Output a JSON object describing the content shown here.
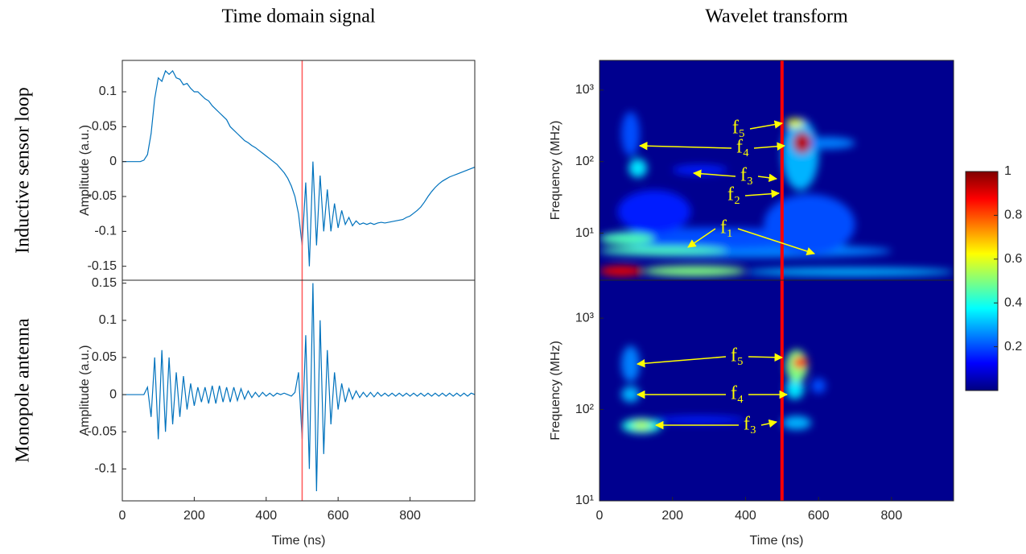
{
  "chart_data": [
    {
      "type": "line",
      "title": "Time domain signal",
      "row_label": "Inductive sensor loop",
      "ylabel": "Amplitude (a.u.)",
      "color": "#0072bd",
      "xlim": [
        0,
        980
      ],
      "ylim": [
        -0.17,
        0.145
      ],
      "yticks": [
        -0.15,
        -0.1,
        -0.05,
        0,
        0.05,
        0.1
      ],
      "vline": 500,
      "vline_color": "#ff5a5a",
      "x": [
        0,
        10,
        20,
        30,
        40,
        50,
        60,
        70,
        80,
        90,
        100,
        110,
        120,
        130,
        140,
        150,
        160,
        170,
        180,
        190,
        200,
        210,
        220,
        230,
        240,
        250,
        260,
        270,
        280,
        290,
        300,
        310,
        320,
        330,
        340,
        350,
        360,
        370,
        380,
        390,
        400,
        410,
        420,
        430,
        440,
        450,
        460,
        470,
        480,
        490,
        500,
        510,
        520,
        530,
        540,
        550,
        560,
        570,
        580,
        590,
        600,
        610,
        620,
        630,
        640,
        650,
        660,
        670,
        680,
        690,
        700,
        710,
        720,
        730,
        740,
        750,
        760,
        770,
        780,
        790,
        800,
        810,
        820,
        830,
        840,
        850,
        860,
        870,
        880,
        890,
        900,
        910,
        920,
        930,
        940,
        950,
        960,
        970,
        980
      ],
      "values": [
        0,
        0,
        0,
        0,
        0,
        0,
        0.002,
        0.01,
        0.04,
        0.09,
        0.12,
        0.115,
        0.13,
        0.125,
        0.13,
        0.12,
        0.118,
        0.11,
        0.112,
        0.105,
        0.1,
        0.1,
        0.095,
        0.09,
        0.087,
        0.08,
        0.075,
        0.07,
        0.065,
        0.06,
        0.05,
        0.045,
        0.04,
        0.035,
        0.03,
        0.027,
        0.023,
        0.02,
        0.016,
        0.012,
        0.008,
        0.004,
        0,
        -0.004,
        -0.01,
        -0.016,
        -0.024,
        -0.035,
        -0.05,
        -0.075,
        -0.12,
        -0.03,
        -0.15,
        0,
        -0.12,
        -0.02,
        -0.1,
        -0.04,
        -0.1,
        -0.06,
        -0.095,
        -0.07,
        -0.09,
        -0.08,
        -0.092,
        -0.085,
        -0.09,
        -0.088,
        -0.09,
        -0.088,
        -0.09,
        -0.088,
        -0.087,
        -0.088,
        -0.087,
        -0.086,
        -0.085,
        -0.084,
        -0.083,
        -0.08,
        -0.078,
        -0.074,
        -0.07,
        -0.065,
        -0.058,
        -0.05,
        -0.043,
        -0.037,
        -0.032,
        -0.028,
        -0.025,
        -0.022,
        -0.02,
        -0.018,
        -0.016,
        -0.014,
        -0.012,
        -0.01,
        -0.008
      ]
    },
    {
      "type": "line",
      "row_label": "Monopole antenna",
      "ylabel": "Amplitude (a.u.)",
      "xlabel": "Time (ns)",
      "color": "#0072bd",
      "xlim": [
        0,
        980
      ],
      "ylim": [
        -0.143,
        0.154
      ],
      "yticks": [
        -0.1,
        -0.05,
        0,
        0.05,
        0.1,
        0.15
      ],
      "xticks": [
        0,
        200,
        400,
        600,
        800
      ],
      "vline": 500,
      "vline_color": "#ff5a5a",
      "x": [
        0,
        10,
        20,
        30,
        40,
        50,
        60,
        70,
        80,
        90,
        100,
        110,
        120,
        130,
        140,
        150,
        160,
        170,
        180,
        190,
        200,
        210,
        220,
        230,
        240,
        250,
        260,
        270,
        280,
        290,
        300,
        310,
        320,
        330,
        340,
        350,
        360,
        370,
        380,
        390,
        400,
        410,
        420,
        430,
        440,
        450,
        460,
        470,
        480,
        490,
        500,
        510,
        520,
        530,
        540,
        550,
        560,
        570,
        580,
        590,
        600,
        610,
        620,
        630,
        640,
        650,
        660,
        670,
        680,
        690,
        700,
        710,
        720,
        730,
        740,
        750,
        760,
        770,
        780,
        790,
        800,
        810,
        820,
        830,
        840,
        850,
        860,
        870,
        880,
        890,
        900,
        910,
        920,
        930,
        940,
        950,
        960,
        970,
        980
      ],
      "values": [
        0,
        0,
        0,
        0,
        0,
        0,
        0,
        0.01,
        -0.03,
        0.05,
        -0.06,
        0.06,
        -0.05,
        0.05,
        -0.04,
        0.03,
        -0.03,
        0.025,
        -0.02,
        0.015,
        -0.015,
        0.01,
        -0.01,
        0.01,
        -0.012,
        0.012,
        -0.012,
        0.012,
        -0.01,
        0.01,
        -0.01,
        0.01,
        -0.008,
        0.008,
        -0.006,
        0.005,
        -0.004,
        0.003,
        -0.003,
        0.003,
        -0.002,
        0.002,
        -0.002,
        0.002,
        0,
        0.002,
        0,
        -0.002,
        0.003,
        0.03,
        -0.06,
        0.08,
        -0.1,
        0.15,
        -0.13,
        0.1,
        -0.08,
        0.06,
        -0.04,
        0.03,
        -0.02,
        0.015,
        -0.01,
        0.008,
        -0.006,
        0.005,
        -0.004,
        0.003,
        -0.003,
        0.003,
        -0.003,
        0.003,
        -0.002,
        0.002,
        -0.002,
        0.002,
        -0.002,
        0.002,
        -0.002,
        0.002,
        -0.002,
        0.002,
        -0.002,
        0.002,
        -0.002,
        0.002,
        -0.002,
        0.002,
        -0.002,
        0.002,
        -0.002,
        0.002,
        -0.002,
        0.002,
        -0.002,
        0.002,
        -0.002,
        0.002,
        0
      ]
    },
    {
      "type": "wavelet",
      "title": "Wavelet transform",
      "ylabel": "Frequency (MHz)",
      "log_y": true,
      "background": "#00008f",
      "xlim": [
        0,
        970
      ],
      "ylim": [
        2.2,
        2600
      ],
      "yticks": [
        {
          "value": 10,
          "label": "10¹"
        },
        {
          "value": 100,
          "label": "10²"
        },
        {
          "value": 1000,
          "label": "10³"
        }
      ],
      "vline": 500,
      "vline_color": "#ff0000",
      "colorbar": {
        "clim": [
          0,
          1
        ],
        "ticks": [
          0.2,
          0.4,
          0.6,
          0.8,
          1
        ]
      },
      "blobs": [
        {
          "t0": 0,
          "t1": 800,
          "f0": 4.5,
          "f1": 7,
          "level": 0.25
        },
        {
          "t0": 0,
          "t1": 600,
          "f0": 6,
          "f1": 12,
          "level": 0.2
        },
        {
          "t0": 450,
          "t1": 700,
          "f0": 5,
          "f1": 35,
          "level": 0.2
        },
        {
          "t0": 50,
          "t1": 250,
          "f0": 10,
          "f1": 40,
          "level": 0.15
        },
        {
          "t0": 0,
          "t1": 350,
          "f0": 5,
          "f1": 6.5,
          "level": 0.45
        },
        {
          "t0": 0,
          "t1": 150,
          "f0": 7,
          "f1": 10,
          "level": 0.45
        },
        {
          "t0": 400,
          "t1": 970,
          "f0": 2.5,
          "f1": 3.3,
          "level": 0.3
        },
        {
          "t0": 120,
          "t1": 400,
          "f0": 2.5,
          "f1": 3.5,
          "level": 0.5
        },
        {
          "t0": 0,
          "t1": 120,
          "f0": 2.5,
          "f1": 3.5,
          "level": 0.9
        },
        {
          "t0": 60,
          "t1": 110,
          "f0": 120,
          "f1": 500,
          "level": 0.2
        },
        {
          "t0": 80,
          "t1": 130,
          "f0": 60,
          "f1": 110,
          "level": 0.35
        },
        {
          "t0": 200,
          "t1": 350,
          "f0": 65,
          "f1": 90,
          "level": 0.15
        },
        {
          "t0": 500,
          "t1": 600,
          "f0": 40,
          "f1": 400,
          "level": 0.3
        },
        {
          "t0": 550,
          "t1": 700,
          "f0": 150,
          "f1": 220,
          "level": 0.25
        },
        {
          "t0": 510,
          "t1": 560,
          "f0": 300,
          "f1": 400,
          "level": 0.6
        },
        {
          "t0": 530,
          "t1": 580,
          "f0": 130,
          "f1": 260,
          "level": 0.95
        }
      ],
      "annotations": [
        "f₅",
        "f₄",
        "f₃",
        "f₂",
        "f₁"
      ]
    },
    {
      "type": "wavelet",
      "ylabel": "Frequency (MHz)",
      "xlabel": "Time (ns)",
      "log_y": true,
      "background": "#00008f",
      "xlim": [
        0,
        970
      ],
      "ylim": [
        10,
        2600
      ],
      "yticks": [
        {
          "value": 10,
          "label": "10¹"
        },
        {
          "value": 100,
          "label": "10²"
        },
        {
          "value": 1000,
          "label": "10³"
        }
      ],
      "xticks": [
        0,
        200,
        400,
        600,
        800
      ],
      "vline": 500,
      "vline_color": "#ff0000",
      "blobs": [
        {
          "t0": 150,
          "t1": 400,
          "f0": 70,
          "f1": 85,
          "level": 0.15
        },
        {
          "t0": 60,
          "t1": 110,
          "f0": 200,
          "f1": 500,
          "level": 0.25
        },
        {
          "t0": 60,
          "t1": 110,
          "f0": 120,
          "f1": 180,
          "level": 0.3
        },
        {
          "t0": 60,
          "t1": 170,
          "f0": 55,
          "f1": 80,
          "level": 0.4
        },
        {
          "t0": 90,
          "t1": 140,
          "f0": 60,
          "f1": 75,
          "level": 0.55
        },
        {
          "t0": 580,
          "t1": 620,
          "f0": 150,
          "f1": 220,
          "level": 0.2
        },
        {
          "t0": 500,
          "t1": 580,
          "f0": 60,
          "f1": 85,
          "level": 0.3
        },
        {
          "t0": 510,
          "t1": 560,
          "f0": 130,
          "f1": 220,
          "level": 0.35
        },
        {
          "t0": 510,
          "t1": 570,
          "f0": 200,
          "f1": 450,
          "level": 0.5
        },
        {
          "t0": 530,
          "t1": 570,
          "f0": 280,
          "f1": 380,
          "level": 0.85
        }
      ],
      "annotations": [
        "f₅",
        "f₄",
        "f₃"
      ]
    }
  ]
}
